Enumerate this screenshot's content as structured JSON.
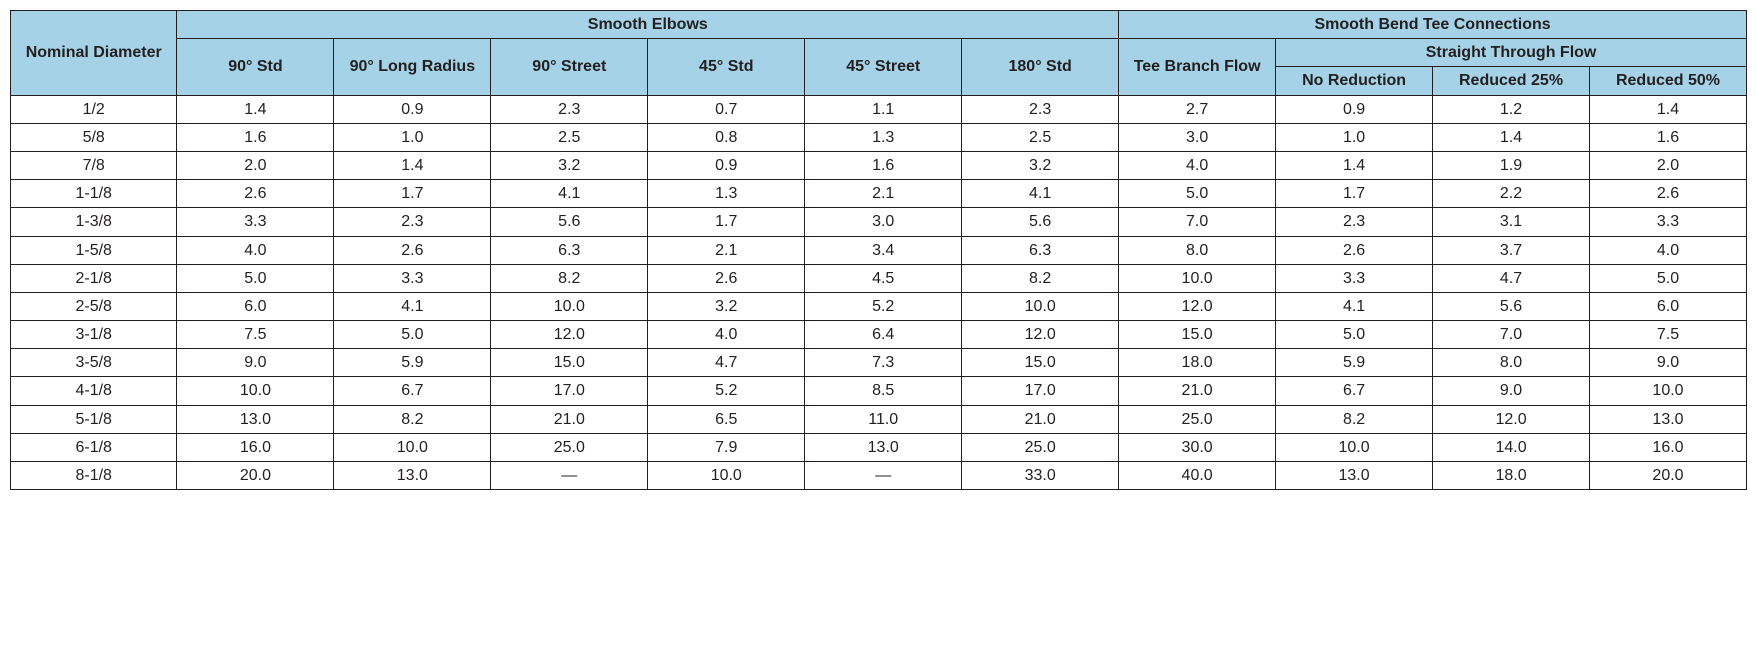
{
  "table": {
    "type": "table",
    "background_color": "#ffffff",
    "header_bg": "#a5d2e6",
    "border_color": "#231f20",
    "text_color": "#231f20",
    "font_family": "Arial",
    "header_fontsize": 16,
    "body_fontsize": 16,
    "headers": {
      "nominal_diameter": "Nominal Diameter",
      "smooth_elbows": "Smooth Elbows",
      "smooth_bend_tee": "Smooth Bend Tee Connections",
      "col_90_std": "90° Std",
      "col_90_long": "90° Long Radius",
      "col_90_street": "90° Street",
      "col_45_std": "45° Std",
      "col_45_street": "45° Street",
      "col_180_std": "180° Std",
      "tee_branch": "Tee Branch Flow",
      "straight_through": "Straight Through Flow",
      "no_reduction": "No Reduction",
      "reduced_25": "Reduced 25%",
      "reduced_50": "Reduced 50%"
    },
    "columns": [
      "nominal_diameter",
      "col_90_std",
      "col_90_long",
      "col_90_street",
      "col_45_std",
      "col_45_street",
      "col_180_std",
      "tee_branch",
      "no_reduction",
      "reduced_25",
      "reduced_50"
    ],
    "rows": [
      [
        "1/2",
        "1.4",
        "0.9",
        "2.3",
        "0.7",
        "1.1",
        "2.3",
        "2.7",
        "0.9",
        "1.2",
        "1.4"
      ],
      [
        "5/8",
        "1.6",
        "1.0",
        "2.5",
        "0.8",
        "1.3",
        "2.5",
        "3.0",
        "1.0",
        "1.4",
        "1.6"
      ],
      [
        "7/8",
        "2.0",
        "1.4",
        "3.2",
        "0.9",
        "1.6",
        "3.2",
        "4.0",
        "1.4",
        "1.9",
        "2.0"
      ],
      [
        "1-1/8",
        "2.6",
        "1.7",
        "4.1",
        "1.3",
        "2.1",
        "4.1",
        "5.0",
        "1.7",
        "2.2",
        "2.6"
      ],
      [
        "1-3/8",
        "3.3",
        "2.3",
        "5.6",
        "1.7",
        "3.0",
        "5.6",
        "7.0",
        "2.3",
        "3.1",
        "3.3"
      ],
      [
        "1-5/8",
        "4.0",
        "2.6",
        "6.3",
        "2.1",
        "3.4",
        "6.3",
        "8.0",
        "2.6",
        "3.7",
        "4.0"
      ],
      [
        "2-1/8",
        "5.0",
        "3.3",
        "8.2",
        "2.6",
        "4.5",
        "8.2",
        "10.0",
        "3.3",
        "4.7",
        "5.0"
      ],
      [
        "2-5/8",
        "6.0",
        "4.1",
        "10.0",
        "3.2",
        "5.2",
        "10.0",
        "12.0",
        "4.1",
        "5.6",
        "6.0"
      ],
      [
        "3-1/8",
        "7.5",
        "5.0",
        "12.0",
        "4.0",
        "6.4",
        "12.0",
        "15.0",
        "5.0",
        "7.0",
        "7.5"
      ],
      [
        "3-5/8",
        "9.0",
        "5.9",
        "15.0",
        "4.7",
        "7.3",
        "15.0",
        "18.0",
        "5.9",
        "8.0",
        "9.0"
      ],
      [
        "4-1/8",
        "10.0",
        "6.7",
        "17.0",
        "5.2",
        "8.5",
        "17.0",
        "21.0",
        "6.7",
        "9.0",
        "10.0"
      ],
      [
        "5-1/8",
        "13.0",
        "8.2",
        "21.0",
        "6.5",
        "11.0",
        "21.0",
        "25.0",
        "8.2",
        "12.0",
        "13.0"
      ],
      [
        "6-1/8",
        "16.0",
        "10.0",
        "25.0",
        "7.9",
        "13.0",
        "25.0",
        "30.0",
        "10.0",
        "14.0",
        "16.0"
      ],
      [
        "8-1/8",
        "20.0",
        "13.0",
        "—",
        "10.0",
        "—",
        "33.0",
        "40.0",
        "13.0",
        "18.0",
        "20.0"
      ]
    ]
  }
}
